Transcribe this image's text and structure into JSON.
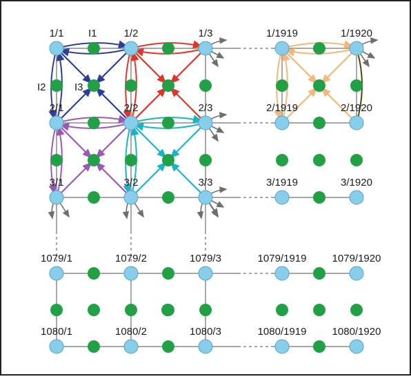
{
  "colors": {
    "pixel_node": "#87CEEB",
    "pixel_stroke": "#5a9fc0",
    "edge_node": "#22a045",
    "grid_line": "#8a8a8a",
    "border": "#222222",
    "arrow_gray": "#6e6e6e",
    "blue": "#2e3e96",
    "red": "#e0352b",
    "purple": "#9b59b6",
    "cyan": "#1ab4c4",
    "orange": "#f5b77a",
    "olive": "#4a4a10"
  },
  "node_labels": {
    "r1c1": "1/1",
    "r1c2": "1/2",
    "r1c3": "1/3",
    "r1c1919": "1/1919",
    "r1c1920": "1/1920",
    "r2c1": "2/1",
    "r2c2": "2/2",
    "r2c3": "2/3",
    "r2c1919": "2/1919",
    "r2c1920": "2/1920",
    "r3c1": "3/1",
    "r3c2": "3/2",
    "r3c3": "3/3",
    "r3c1919": "3/1919",
    "r3c1920": "3/1920",
    "r1079c1": "1079/1",
    "r1079c2": "1079/2",
    "r1079c3": "1079/3",
    "r1079c1919": "1079/1919",
    "r1079c1920": "1079/1920",
    "r1080c1": "1080/1",
    "r1080c2": "1080/2",
    "r1080c3": "1080/3",
    "r1080c1919": "1080/1919",
    "r1080c1920": "1080/1920"
  },
  "edge_labels": {
    "l1": "I1",
    "l2": "I2",
    "l3": "I3"
  }
}
